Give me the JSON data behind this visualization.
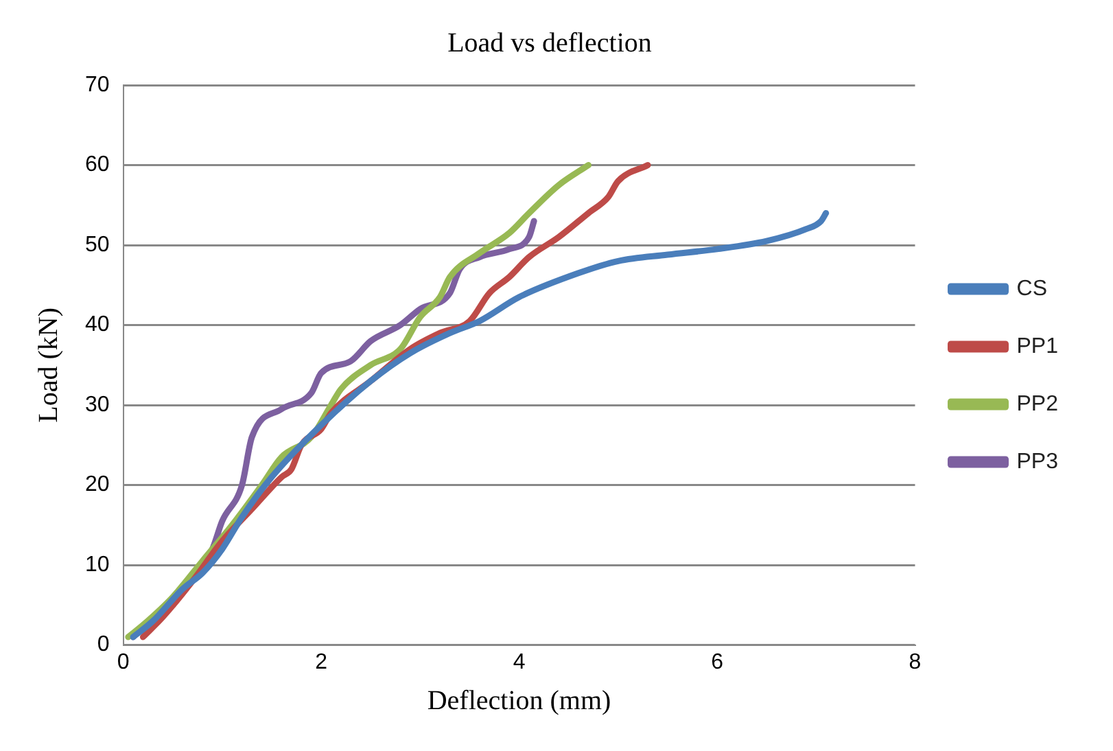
{
  "chart_data": {
    "type": "line",
    "title": "Load vs deflection",
    "xlabel": "Deflection (mm)",
    "ylabel": "Load (kN)",
    "xlim": [
      0,
      8
    ],
    "xticks": [
      0,
      2,
      4,
      6,
      8
    ],
    "ylim": [
      0,
      70
    ],
    "yticks": [
      0,
      10,
      20,
      30,
      40,
      50,
      60,
      70
    ],
    "grid": "y",
    "legend": "right",
    "marker": "none",
    "line_style": "solid",
    "series": [
      {
        "name": "CS",
        "color": "#4a7ebb",
        "x": [
          0.1,
          0.3,
          0.6,
          0.8,
          1.0,
          1.2,
          1.5,
          2.0,
          2.5,
          2.9,
          3.3,
          3.6,
          4.0,
          4.6,
          5.0,
          5.5,
          6.0,
          6.5,
          6.9,
          7.05,
          7.1
        ],
        "values": [
          1,
          3,
          7,
          9,
          12,
          16,
          21,
          27.5,
          33,
          36.5,
          39,
          40.5,
          43.5,
          46.5,
          48,
          48.8,
          49.5,
          50.5,
          52,
          53,
          54
        ]
      },
      {
        "name": "PP1",
        "color": "#be4b48",
        "x": [
          0.2,
          0.4,
          0.7,
          1.0,
          1.3,
          1.6,
          1.7,
          1.8,
          2.0,
          2.1,
          2.5,
          2.9,
          3.2,
          3.5,
          3.7,
          3.9,
          4.1,
          4.4,
          4.7,
          4.9,
          5.0,
          5.3
        ],
        "values": [
          1,
          3.5,
          8,
          13,
          17,
          21,
          22,
          25,
          27,
          29,
          33,
          37,
          39,
          40.5,
          44,
          46,
          48.5,
          51,
          54,
          56,
          58,
          60
        ]
      },
      {
        "name": "PP2",
        "color": "#98b954",
        "x": [
          0.05,
          0.2,
          0.5,
          0.8,
          1.1,
          1.4,
          1.6,
          1.9,
          2.1,
          2.2,
          2.5,
          2.8,
          3.0,
          3.2,
          3.3,
          3.6,
          3.9,
          4.1,
          4.4,
          4.7
        ],
        "values": [
          1,
          2.5,
          6,
          10.5,
          15,
          20,
          23.5,
          26,
          30,
          32,
          35,
          37,
          41,
          43.5,
          46,
          49,
          51.5,
          54,
          57.5,
          60
        ]
      },
      {
        "name": "PP3",
        "color": "#7d60a0",
        "x": [
          0.1,
          0.3,
          0.6,
          0.9,
          1.0,
          1.2,
          1.3,
          1.6,
          1.9,
          2.0,
          2.3,
          2.5,
          2.8,
          3.0,
          3.3,
          3.4,
          3.6,
          3.9,
          4.1,
          4.15
        ],
        "values": [
          1,
          3.5,
          7,
          12,
          15.5,
          20,
          26,
          29.5,
          31.5,
          34,
          35.5,
          38,
          40,
          42,
          44,
          47,
          48.5,
          49.5,
          51,
          53
        ]
      }
    ]
  }
}
